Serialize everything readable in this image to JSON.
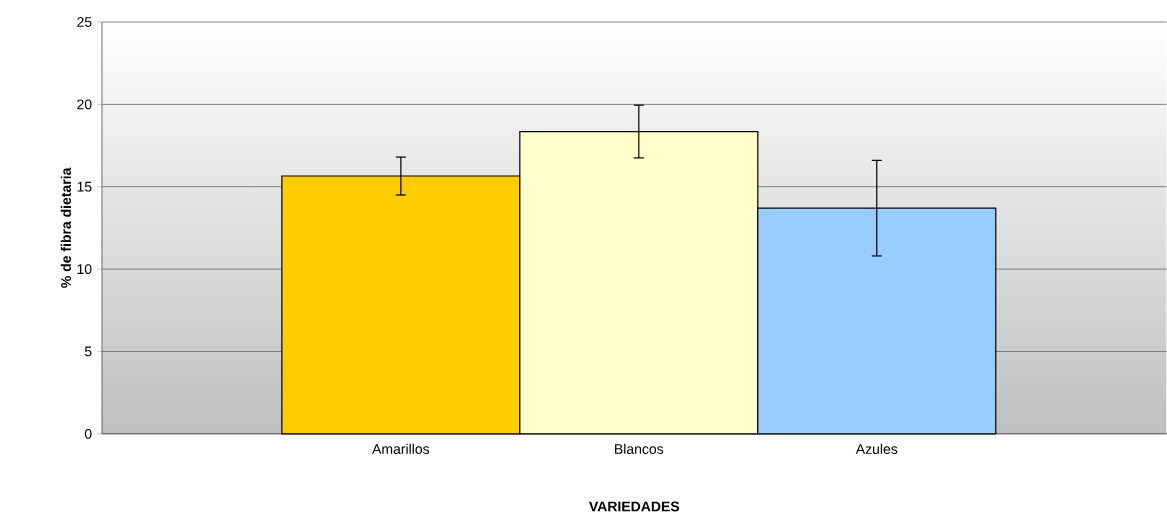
{
  "chart_data": {
    "type": "bar",
    "xlabel": "VARIEDADES",
    "ylabel": "% de fibra dietaria",
    "categories": [
      "Amarillos",
      "Blancos",
      "Azules"
    ],
    "values": [
      15.65,
      18.35,
      13.7
    ],
    "errors": [
      1.15,
      1.6,
      2.9
    ],
    "colors": [
      "#ffcc00",
      "#ffffcc",
      "#99ccff"
    ],
    "ylim": [
      0,
      25
    ],
    "yticks": [
      0,
      5,
      10,
      15,
      20,
      25
    ],
    "grid": "y"
  }
}
